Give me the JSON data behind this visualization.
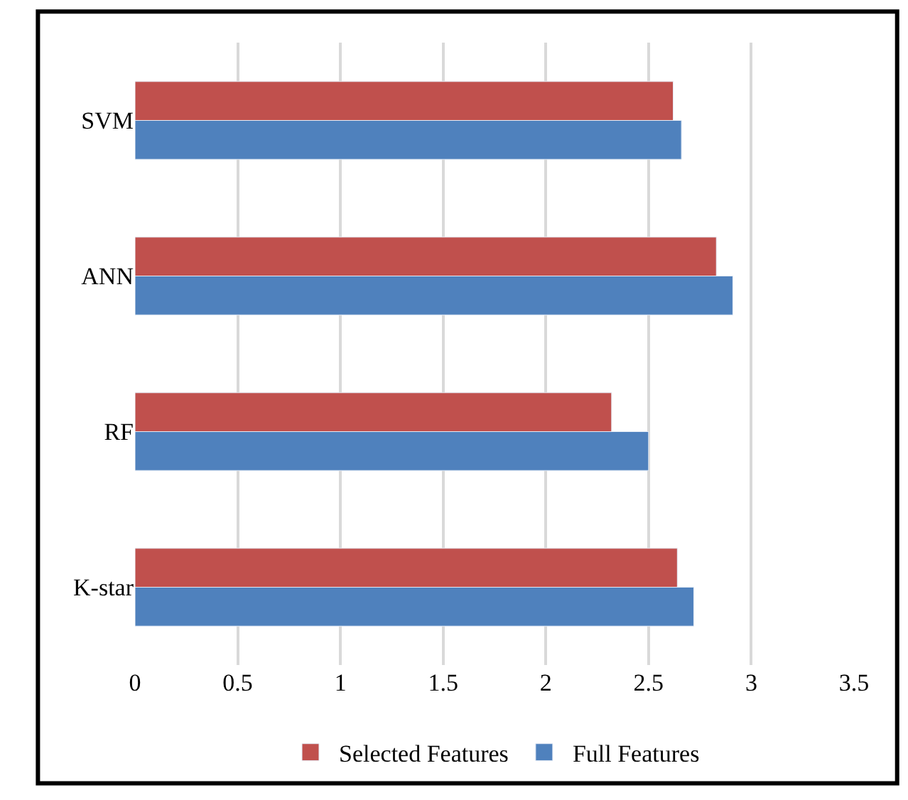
{
  "chart_data": {
    "type": "bar",
    "orientation": "horizontal",
    "categories": [
      "SVM",
      "ANN",
      "RF",
      "K-star"
    ],
    "series": [
      {
        "name": "Selected Features",
        "color": "#c0504d",
        "values": [
          2.62,
          2.83,
          2.32,
          2.64
        ]
      },
      {
        "name": "Full Features",
        "color": "#4f81bd",
        "values": [
          2.66,
          2.91,
          2.5,
          2.72
        ]
      }
    ],
    "xlim": [
      0,
      3.5
    ],
    "xticks": [
      0,
      0.5,
      1,
      1.5,
      2,
      2.5,
      3,
      3.5
    ],
    "grid": "x",
    "legend": "bottom"
  }
}
